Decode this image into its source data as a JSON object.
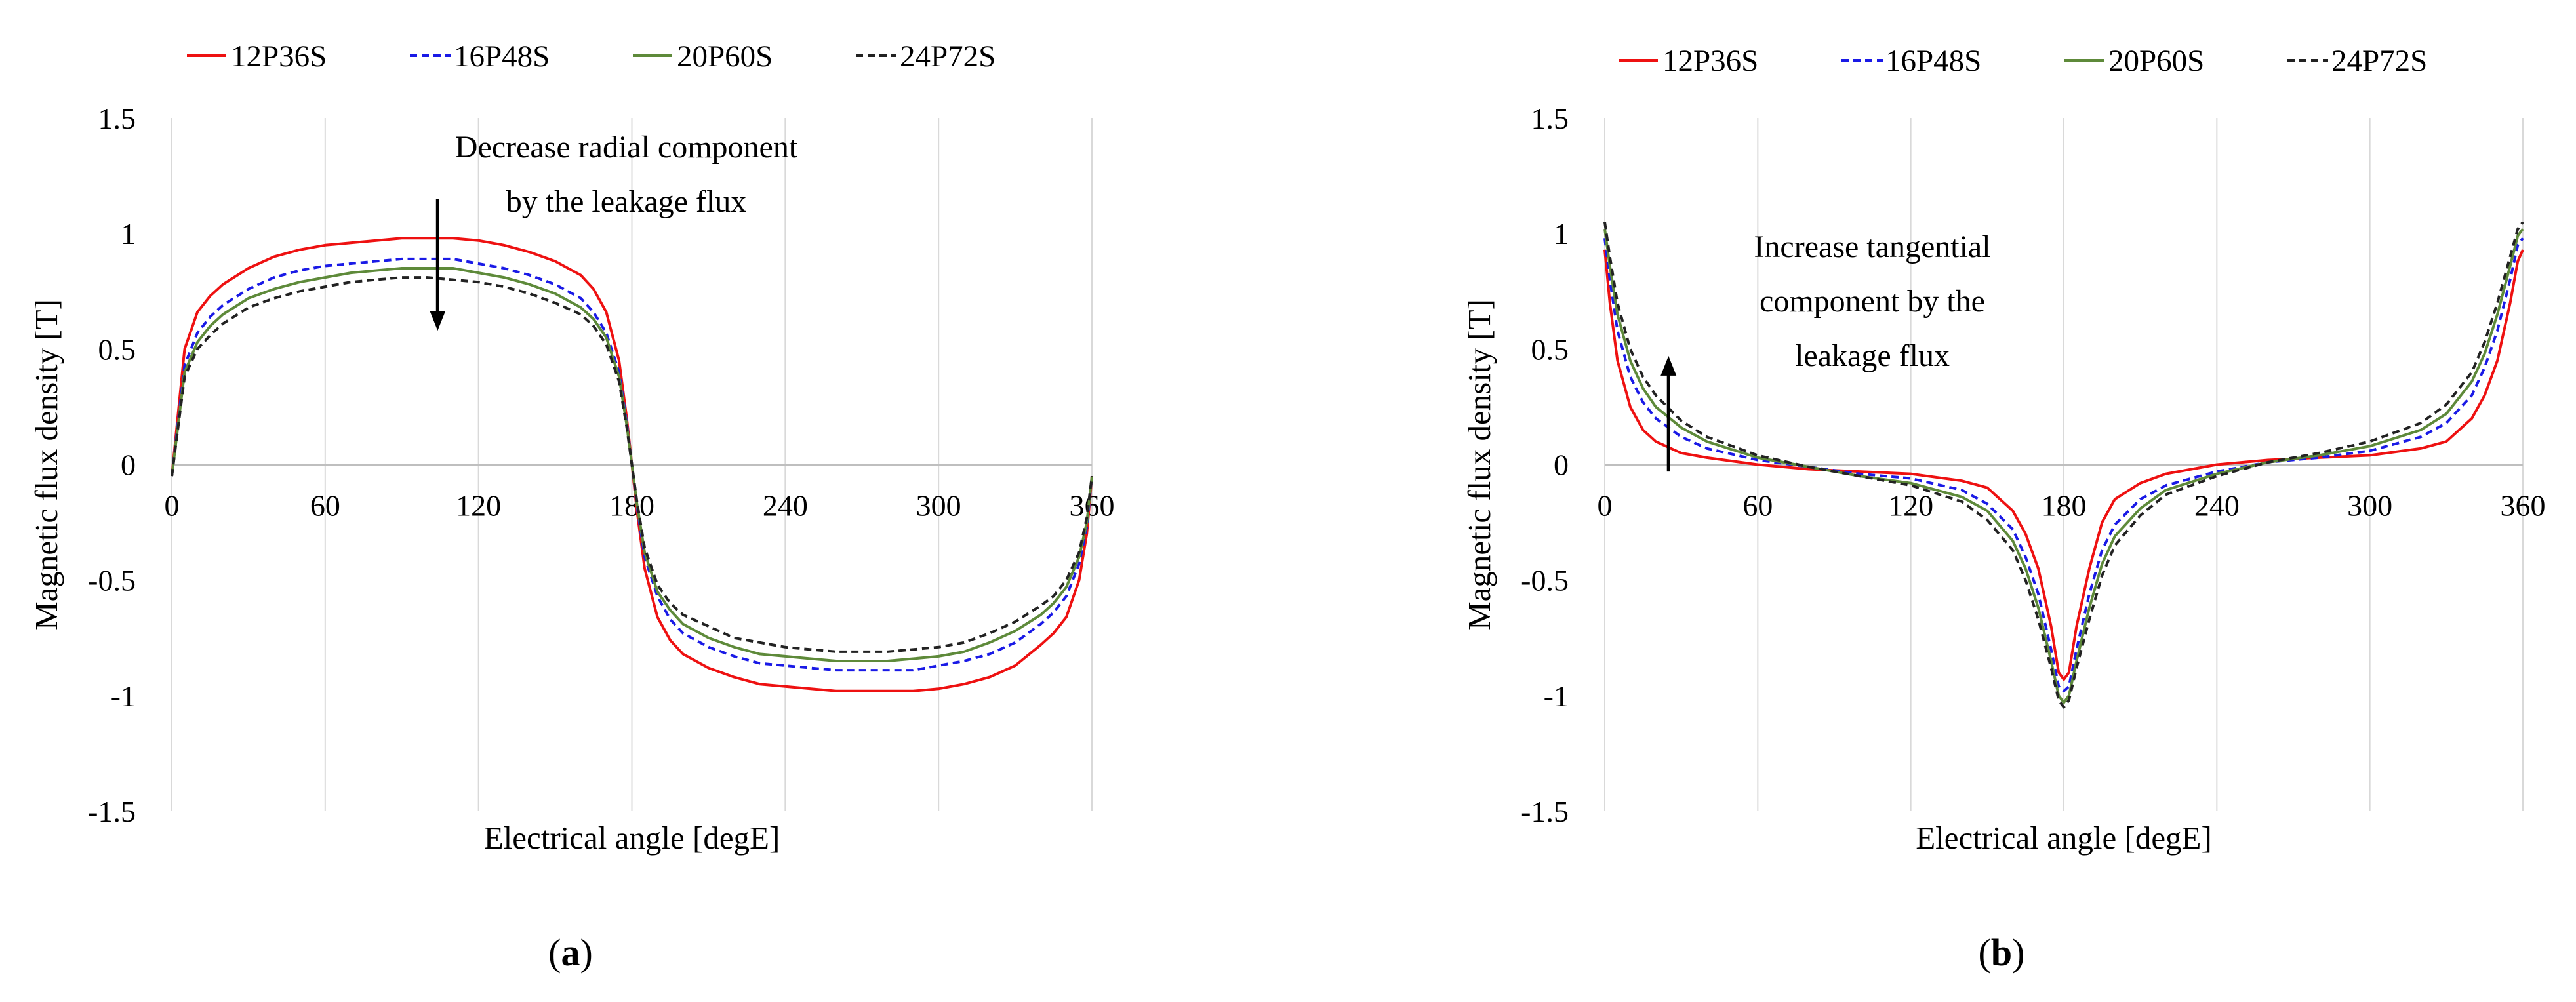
{
  "chart_data": [
    {
      "type": "line",
      "panel_label": "a",
      "xlabel": "Electrical angle [degE]",
      "ylabel": "Magnetic flux density  [T]",
      "xlim": [
        0,
        360
      ],
      "ylim": [
        -1.5,
        1.5
      ],
      "x_ticks": [
        0,
        60,
        120,
        180,
        240,
        300,
        360
      ],
      "y_ticks": [
        -1.5,
        -1,
        -0.5,
        0,
        0.5,
        1,
        1.5
      ],
      "x_tick_labels": [
        "0",
        "60",
        "120",
        "180",
        "240",
        "300",
        "360"
      ],
      "y_tick_labels": [
        "-1.5",
        "-1",
        "-0.5",
        "0",
        "0.5",
        "1",
        "1.5"
      ],
      "grid": "vertical",
      "legend": [
        "12P36S",
        "16P48S",
        "20P60S",
        "24P72S"
      ],
      "legend_position": "top",
      "annotation": {
        "lines": [
          "Decrease radial component",
          "by the leakage flux"
        ],
        "arrow_x": 104,
        "arrow_from": 1.15,
        "arrow_to": 0.58
      },
      "x": [
        0,
        5,
        10,
        15,
        20,
        30,
        40,
        50,
        60,
        70,
        80,
        90,
        100,
        110,
        120,
        130,
        140,
        150,
        160,
        165,
        170,
        175,
        178,
        180,
        182,
        185,
        190,
        195,
        200,
        210,
        220,
        230,
        240,
        250,
        260,
        270,
        280,
        290,
        300,
        310,
        320,
        330,
        340,
        345,
        350,
        355,
        358,
        360
      ],
      "series": [
        {
          "name": "12P36S",
          "color": "#ee1111",
          "dash": "solid",
          "values": [
            -0.05,
            0.5,
            0.66,
            0.73,
            0.78,
            0.85,
            0.9,
            0.93,
            0.95,
            0.96,
            0.97,
            0.98,
            0.98,
            0.98,
            0.97,
            0.95,
            0.92,
            0.88,
            0.82,
            0.76,
            0.66,
            0.45,
            0.2,
            0,
            -0.2,
            -0.45,
            -0.66,
            -0.76,
            -0.82,
            -0.88,
            -0.92,
            -0.95,
            -0.96,
            -0.97,
            -0.98,
            -0.98,
            -0.98,
            -0.98,
            -0.97,
            -0.95,
            -0.92,
            -0.87,
            -0.78,
            -0.73,
            -0.66,
            -0.5,
            -0.3,
            -0.05
          ]
        },
        {
          "name": "16P48S",
          "color": "#1a1ae6",
          "dash": "dashed",
          "values": [
            -0.05,
            0.43,
            0.57,
            0.64,
            0.69,
            0.76,
            0.81,
            0.84,
            0.86,
            0.87,
            0.88,
            0.89,
            0.89,
            0.89,
            0.87,
            0.85,
            0.82,
            0.78,
            0.72,
            0.66,
            0.57,
            0.4,
            0.18,
            0,
            -0.18,
            -0.4,
            -0.57,
            -0.67,
            -0.73,
            -0.79,
            -0.83,
            -0.86,
            -0.87,
            -0.88,
            -0.89,
            -0.89,
            -0.89,
            -0.89,
            -0.87,
            -0.85,
            -0.82,
            -0.77,
            -0.69,
            -0.64,
            -0.57,
            -0.43,
            -0.27,
            -0.05
          ]
        },
        {
          "name": "20P60S",
          "color": "#5e8a3a",
          "dash": "solid",
          "values": [
            -0.05,
            0.4,
            0.53,
            0.6,
            0.65,
            0.72,
            0.76,
            0.79,
            0.81,
            0.83,
            0.84,
            0.85,
            0.85,
            0.85,
            0.83,
            0.81,
            0.78,
            0.74,
            0.68,
            0.63,
            0.55,
            0.38,
            0.17,
            0,
            -0.17,
            -0.38,
            -0.55,
            -0.63,
            -0.69,
            -0.75,
            -0.79,
            -0.82,
            -0.83,
            -0.84,
            -0.85,
            -0.85,
            -0.85,
            -0.84,
            -0.83,
            -0.81,
            -0.77,
            -0.72,
            -0.65,
            -0.6,
            -0.53,
            -0.4,
            -0.25,
            -0.05
          ]
        },
        {
          "name": "24P72S",
          "color": "#222222",
          "dash": "dashed",
          "values": [
            -0.05,
            0.38,
            0.5,
            0.56,
            0.61,
            0.68,
            0.72,
            0.75,
            0.77,
            0.79,
            0.8,
            0.81,
            0.81,
            0.8,
            0.79,
            0.77,
            0.74,
            0.7,
            0.65,
            0.6,
            0.52,
            0.36,
            0.16,
            0,
            -0.16,
            -0.36,
            -0.52,
            -0.6,
            -0.65,
            -0.7,
            -0.75,
            -0.77,
            -0.79,
            -0.8,
            -0.81,
            -0.81,
            -0.81,
            -0.8,
            -0.79,
            -0.77,
            -0.73,
            -0.68,
            -0.61,
            -0.57,
            -0.5,
            -0.38,
            -0.23,
            -0.05
          ]
        }
      ]
    },
    {
      "type": "line",
      "panel_label": "b",
      "xlabel": "Electrical angle [degE]",
      "ylabel": "Magnetic flux density  [T]",
      "xlim": [
        0,
        360
      ],
      "ylim": [
        -1.5,
        1.5
      ],
      "x_ticks": [
        0,
        60,
        120,
        180,
        240,
        300,
        360
      ],
      "y_ticks": [
        -1.5,
        -1,
        -0.5,
        0,
        0.5,
        1,
        1.5
      ],
      "x_tick_labels": [
        "0",
        "60",
        "120",
        "180",
        "240",
        "300",
        "360"
      ],
      "y_tick_labels": [
        "-1.5",
        "-1",
        "-0.5",
        "0",
        "0.5",
        "1",
        "1.5"
      ],
      "grid": "vertical",
      "legend": [
        "12P36S",
        "16P48S",
        "20P60S",
        "24P72S"
      ],
      "legend_position": "top",
      "annotation": {
        "lines": [
          "Increase tangential",
          "component by the",
          "leakage flux"
        ],
        "arrow_x": 25,
        "arrow_from": -0.03,
        "arrow_to": 0.47
      },
      "x": [
        0,
        2,
        5,
        10,
        15,
        20,
        30,
        40,
        60,
        80,
        100,
        120,
        140,
        150,
        160,
        165,
        170,
        175,
        178,
        180,
        182,
        185,
        190,
        195,
        200,
        210,
        220,
        240,
        260,
        280,
        300,
        320,
        330,
        340,
        345,
        350,
        355,
        358,
        360
      ],
      "series": [
        {
          "name": "12P36S",
          "color": "#ee1111",
          "dash": "solid",
          "values": [
            0.93,
            0.7,
            0.45,
            0.25,
            0.15,
            0.1,
            0.05,
            0.03,
            0.0,
            -0.02,
            -0.03,
            -0.04,
            -0.07,
            -0.1,
            -0.2,
            -0.3,
            -0.45,
            -0.7,
            -0.9,
            -0.93,
            -0.9,
            -0.7,
            -0.45,
            -0.25,
            -0.15,
            -0.08,
            -0.04,
            0.0,
            0.02,
            0.03,
            0.04,
            0.07,
            0.1,
            0.2,
            0.3,
            0.45,
            0.7,
            0.88,
            0.93
          ]
        },
        {
          "name": "16P48S",
          "color": "#1a1ae6",
          "dash": "dashed",
          "values": [
            0.98,
            0.8,
            0.58,
            0.38,
            0.27,
            0.2,
            0.12,
            0.07,
            0.02,
            -0.01,
            -0.04,
            -0.06,
            -0.11,
            -0.17,
            -0.28,
            -0.4,
            -0.56,
            -0.8,
            -0.96,
            -0.98,
            -0.96,
            -0.8,
            -0.56,
            -0.37,
            -0.26,
            -0.15,
            -0.09,
            -0.03,
            0.01,
            0.03,
            0.06,
            0.12,
            0.18,
            0.3,
            0.42,
            0.58,
            0.8,
            0.95,
            0.98
          ]
        },
        {
          "name": "20P60S",
          "color": "#5e8a3a",
          "dash": "solid",
          "values": [
            1.02,
            0.86,
            0.65,
            0.45,
            0.33,
            0.25,
            0.16,
            0.1,
            0.03,
            -0.01,
            -0.05,
            -0.08,
            -0.14,
            -0.2,
            -0.33,
            -0.45,
            -0.62,
            -0.85,
            -1.0,
            -1.03,
            -1.0,
            -0.85,
            -0.62,
            -0.43,
            -0.31,
            -0.19,
            -0.11,
            -0.04,
            0.01,
            0.04,
            0.08,
            0.15,
            0.22,
            0.36,
            0.48,
            0.65,
            0.86,
            0.99,
            1.02
          ]
        },
        {
          "name": "24P72S",
          "color": "#222222",
          "dash": "dashed",
          "values": [
            1.05,
            0.9,
            0.7,
            0.5,
            0.38,
            0.3,
            0.19,
            0.12,
            0.04,
            -0.01,
            -0.05,
            -0.09,
            -0.16,
            -0.24,
            -0.37,
            -0.5,
            -0.67,
            -0.88,
            -1.02,
            -1.05,
            -1.02,
            -0.88,
            -0.67,
            -0.48,
            -0.35,
            -0.22,
            -0.13,
            -0.05,
            0.01,
            0.05,
            0.1,
            0.18,
            0.26,
            0.4,
            0.53,
            0.7,
            0.9,
            1.02,
            1.05
          ]
        }
      ]
    }
  ]
}
